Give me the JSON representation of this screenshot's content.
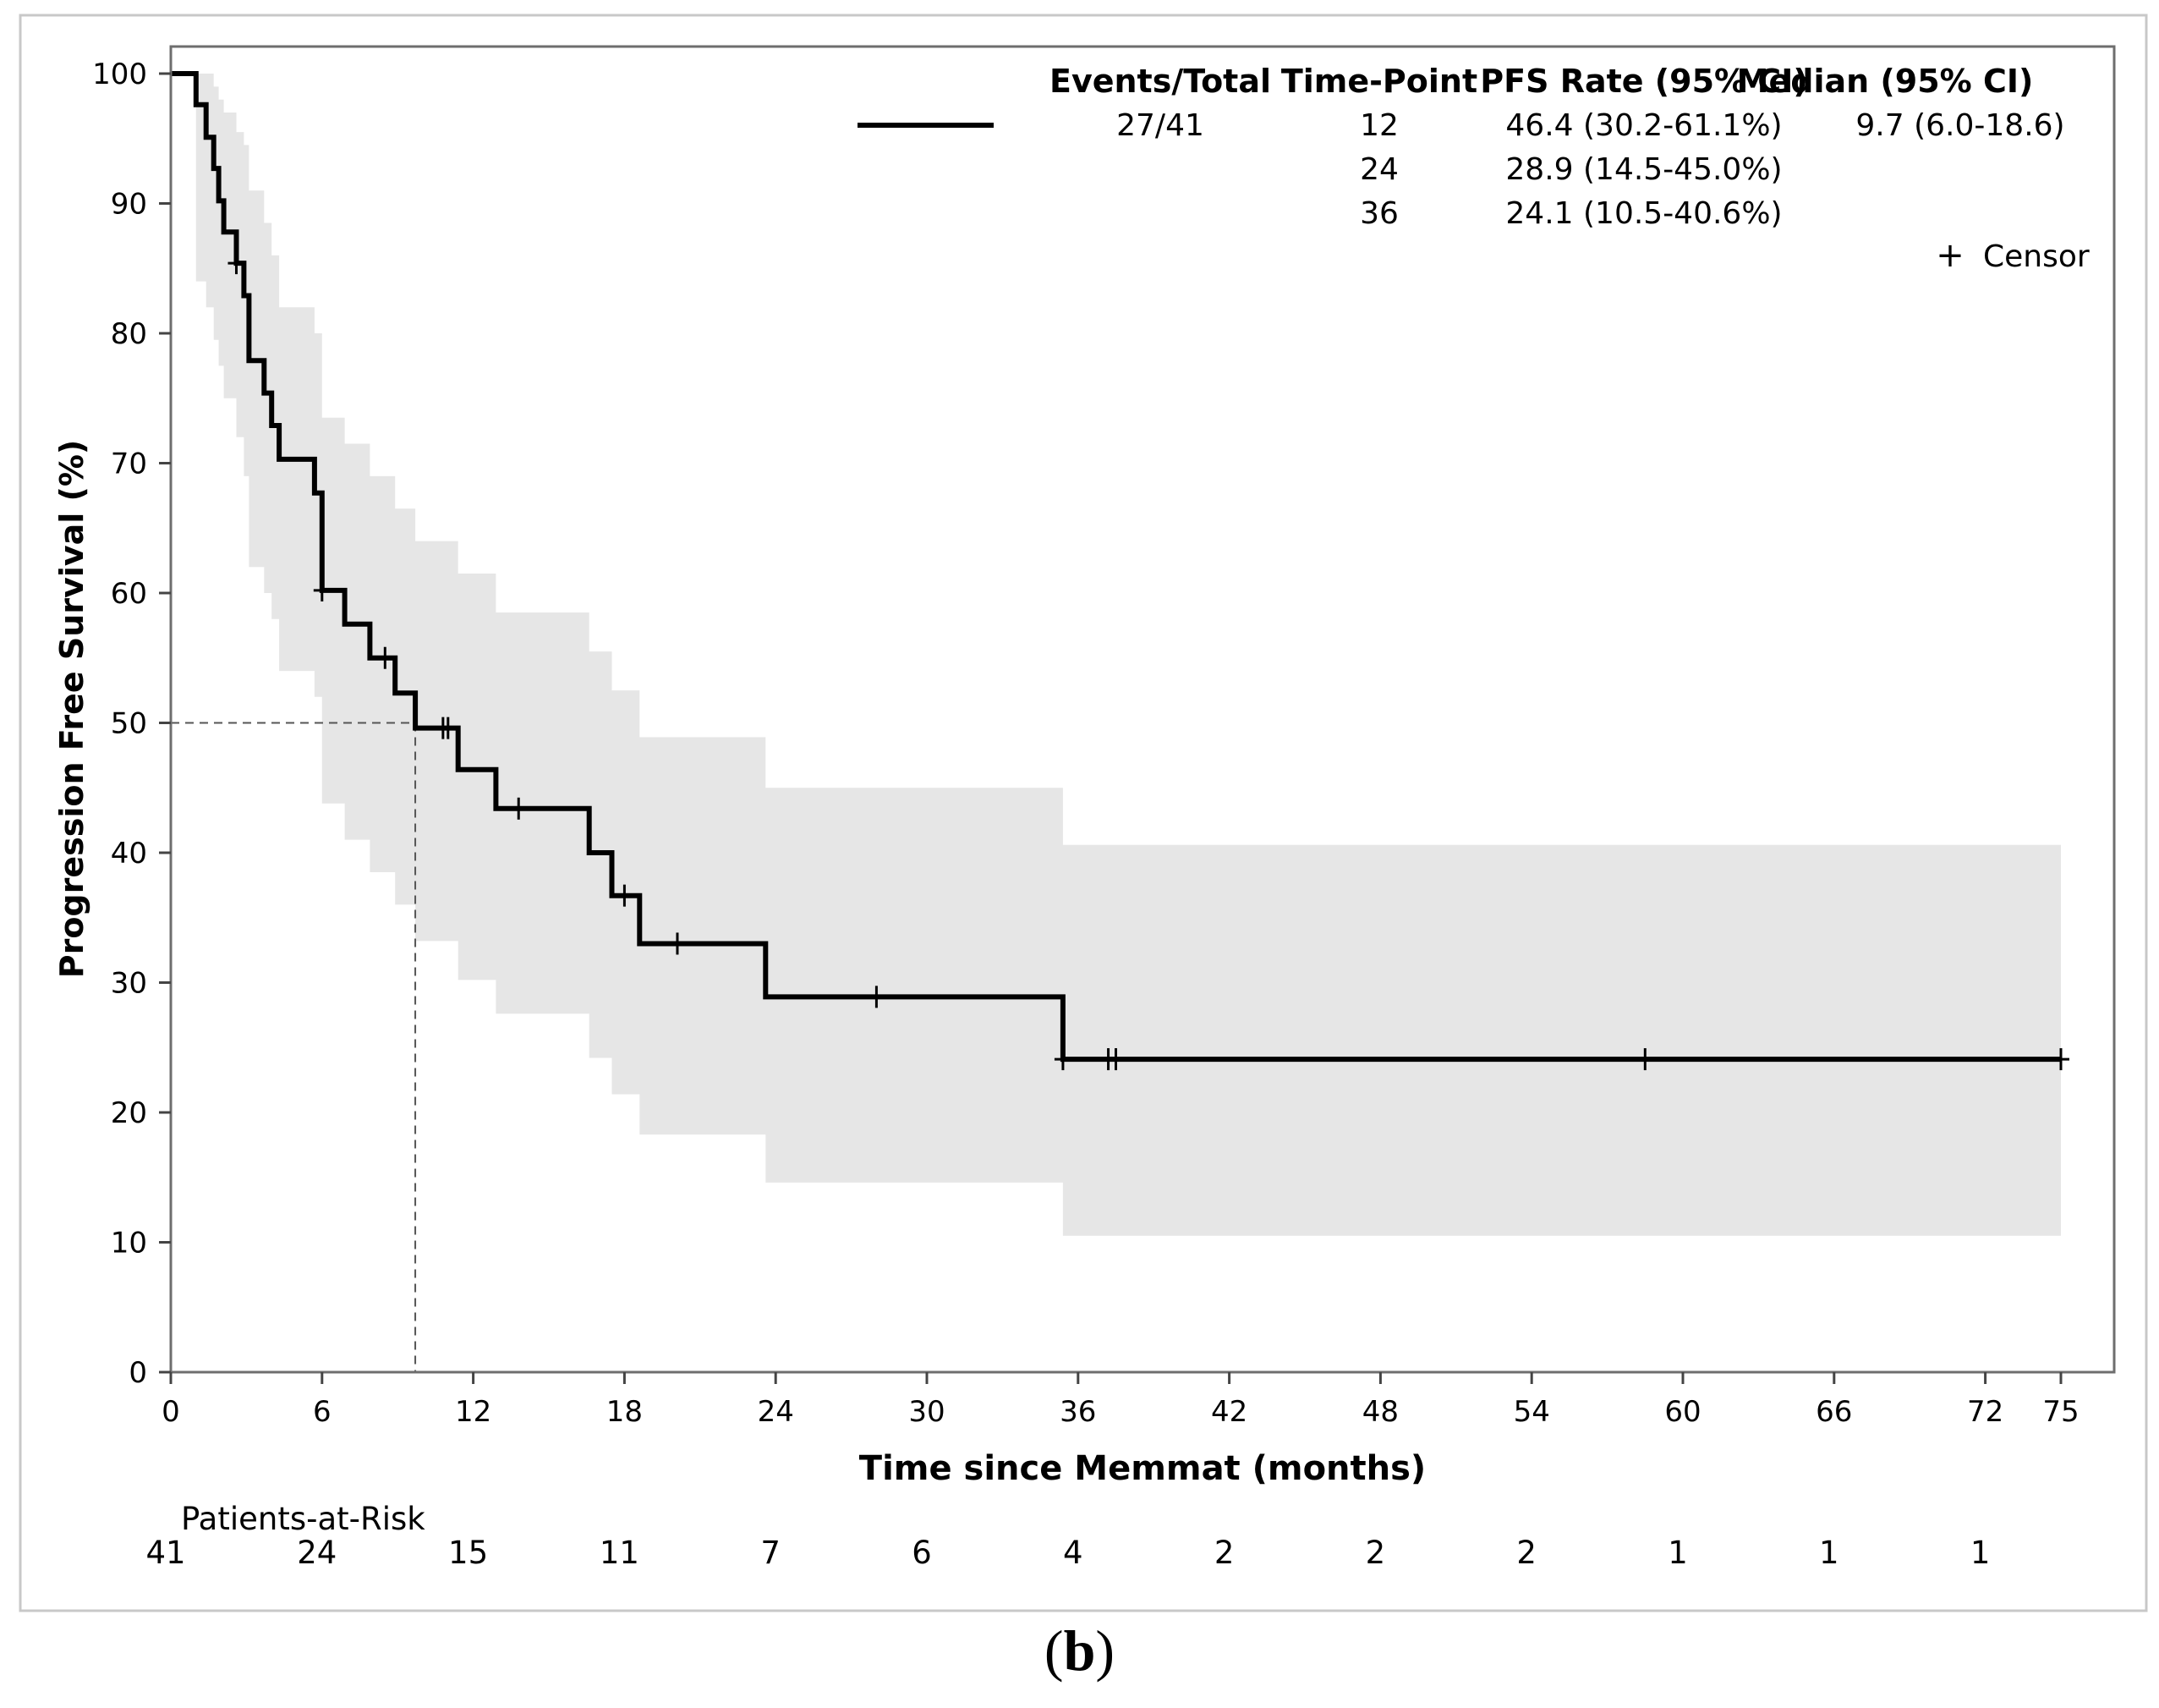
{
  "chart_data": {
    "type": "line",
    "subtype": "kaplan-meier",
    "title": "",
    "xlabel": "Time since Memmat (months)",
    "ylabel": "Progression Free Survival (%)",
    "xlim": [
      0,
      75
    ],
    "ylim": [
      0,
      100
    ],
    "x_ticks": [
      0,
      6,
      12,
      18,
      24,
      30,
      36,
      42,
      48,
      54,
      60,
      66,
      72,
      75
    ],
    "y_ticks": [
      0,
      10,
      20,
      30,
      40,
      50,
      60,
      70,
      80,
      90,
      100
    ],
    "grid": false,
    "series": [
      {
        "name": "PFS",
        "steps": [
          [
            0,
            100
          ],
          [
            1.0,
            97.6
          ],
          [
            1.4,
            95.1
          ],
          [
            1.7,
            92.7
          ],
          [
            1.9,
            90.2
          ],
          [
            2.1,
            87.8
          ],
          [
            2.6,
            85.4
          ],
          [
            2.9,
            82.9
          ],
          [
            3.1,
            77.9
          ],
          [
            3.7,
            75.4
          ],
          [
            4.0,
            72.9
          ],
          [
            4.3,
            70.3
          ],
          [
            5.7,
            67.7
          ],
          [
            6.0,
            60.2
          ],
          [
            6.9,
            57.6
          ],
          [
            7.9,
            55.0
          ],
          [
            8.9,
            52.3
          ],
          [
            9.7,
            49.6
          ],
          [
            11.4,
            46.4
          ],
          [
            12.9,
            43.4
          ],
          [
            16.6,
            40.0
          ],
          [
            17.5,
            36.7
          ],
          [
            18.6,
            33.0
          ],
          [
            23.6,
            28.9
          ],
          [
            35.4,
            24.1
          ],
          [
            75.0,
            24.1
          ]
        ],
        "ci_band": [
          [
            0,
            100,
            100
          ],
          [
            1.0,
            100,
            84.0
          ],
          [
            1.4,
            100,
            82.0
          ],
          [
            1.7,
            99.0,
            79.5
          ],
          [
            1.9,
            98.0,
            77.5
          ],
          [
            2.1,
            97.0,
            75.0
          ],
          [
            2.6,
            95.5,
            72.0
          ],
          [
            2.9,
            94.5,
            69.0
          ],
          [
            3.1,
            91.0,
            62.0
          ],
          [
            3.7,
            88.5,
            60.0
          ],
          [
            4.0,
            86.0,
            58.0
          ],
          [
            4.3,
            82.0,
            54.0
          ],
          [
            5.7,
            80.0,
            52.0
          ],
          [
            6.0,
            73.5,
            43.8
          ],
          [
            6.9,
            71.5,
            41.0
          ],
          [
            7.9,
            69.0,
            38.5
          ],
          [
            8.9,
            66.5,
            36.0
          ],
          [
            9.7,
            64.0,
            33.2
          ],
          [
            11.4,
            61.5,
            30.2
          ],
          [
            12.9,
            58.5,
            27.6
          ],
          [
            16.6,
            55.5,
            24.2
          ],
          [
            17.5,
            52.5,
            21.4
          ],
          [
            18.6,
            48.9,
            18.3
          ],
          [
            23.6,
            45.0,
            14.6
          ],
          [
            35.4,
            40.6,
            10.5
          ],
          [
            75.0,
            40.6,
            10.5
          ]
        ],
        "censored": [
          [
            2.6,
            85.4
          ],
          [
            6.0,
            60.2
          ],
          [
            8.5,
            55.0
          ],
          [
            10.8,
            49.6
          ],
          [
            11.0,
            49.6
          ],
          [
            13.8,
            43.4
          ],
          [
            18.0,
            36.7
          ],
          [
            20.1,
            33.0
          ],
          [
            28.0,
            28.9
          ],
          [
            35.4,
            24.1
          ],
          [
            37.2,
            24.1
          ],
          [
            37.5,
            24.1
          ],
          [
            58.5,
            24.1
          ],
          [
            75.0,
            24.1
          ]
        ]
      }
    ],
    "median_reference": {
      "x": 9.7,
      "y": 50
    },
    "legend": {
      "headers": [
        "Events/Total",
        "Time-Point",
        "PFS Rate (95% CI)",
        "Median (95% CI)"
      ],
      "events_total": "27/41",
      "rows": [
        {
          "time_point": "12",
          "pfs_rate": "46.4 (30.2-61.1%)",
          "median": "9.7 (6.0-18.6)"
        },
        {
          "time_point": "24",
          "pfs_rate": "28.9 (14.5-45.0%)",
          "median": ""
        },
        {
          "time_point": "36",
          "pfs_rate": "24.1 (10.5-40.6%)",
          "median": ""
        }
      ],
      "censor_symbol": "+",
      "censor_label": "Censor"
    },
    "risk_table": {
      "title": "Patients-at-Risk",
      "times": [
        0,
        6,
        12,
        18,
        24,
        30,
        36,
        42,
        48,
        54,
        60,
        66,
        72
      ],
      "counts": [
        41,
        24,
        15,
        11,
        7,
        6,
        4,
        2,
        2,
        2,
        1,
        1,
        1
      ]
    }
  },
  "caption": {
    "open": "(",
    "letter": "b",
    "close": ")"
  }
}
